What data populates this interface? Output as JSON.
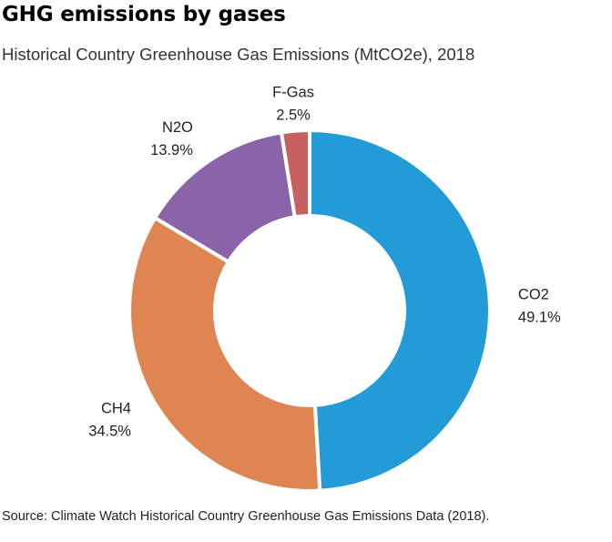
{
  "header": {
    "title": "GHG emissions by gases",
    "subtitle": "Historical Country Greenhouse Gas Emissions (MtCO2e), 2018"
  },
  "footer": {
    "source": "Source: Climate Watch Historical Country Greenhouse Gas Emissions Data (2018)."
  },
  "chart_data": {
    "type": "pie",
    "style": "donut",
    "title": "GHG emissions by gases",
    "subtitle": "Historical Country Greenhouse Gas Emissions (MtCO2e), 2018",
    "slices": [
      {
        "label": "CO2",
        "value": 49.1,
        "value_label": "49.1%",
        "color": "#239bd6"
      },
      {
        "label": "CH4",
        "value": 34.5,
        "value_label": "34.5%",
        "color": "#de8552"
      },
      {
        "label": "N2O",
        "value": 13.9,
        "value_label": "13.9%",
        "color": "#8b63a8"
      },
      {
        "label": "F-Gas",
        "value": 2.5,
        "value_label": "2.5%",
        "color": "#c8605f"
      }
    ],
    "legend": "none",
    "grid": false
  }
}
